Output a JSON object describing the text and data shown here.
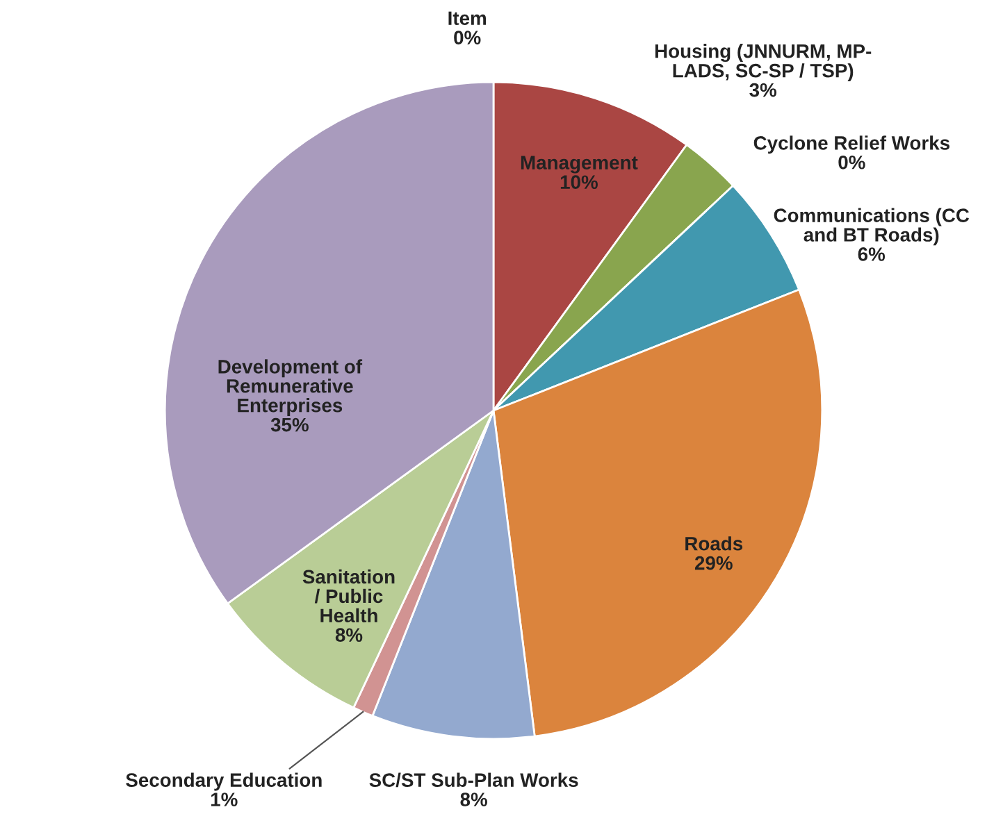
{
  "chart_data": {
    "type": "pie",
    "categories": [
      "Item",
      "Management",
      "Housing (JNNURM, MP-\nLADS, SC-SP / TSP)",
      "Cyclone Relief Works",
      "Communications (CC\nand BT Roads)",
      "Roads",
      "SC/ST Sub-Plan Works",
      "Secondary Education",
      "Sanitation\n/ Public\nHealth",
      "Development of\nRemunerative\nEnterprises"
    ],
    "values": [
      0,
      10,
      3,
      0,
      6,
      29,
      8,
      1,
      8,
      35
    ],
    "value_labels": [
      "0%",
      "10%",
      "3%",
      "0%",
      "6%",
      "29%",
      "8%",
      "1%",
      "8%",
      "35%"
    ],
    "colors": [
      "#4572a7",
      "#aa4643",
      "#89a54e",
      "#71588f",
      "#4198af",
      "#db843d",
      "#93a9cf",
      "#d19392",
      "#b9cd96",
      "#a99bbd"
    ]
  }
}
